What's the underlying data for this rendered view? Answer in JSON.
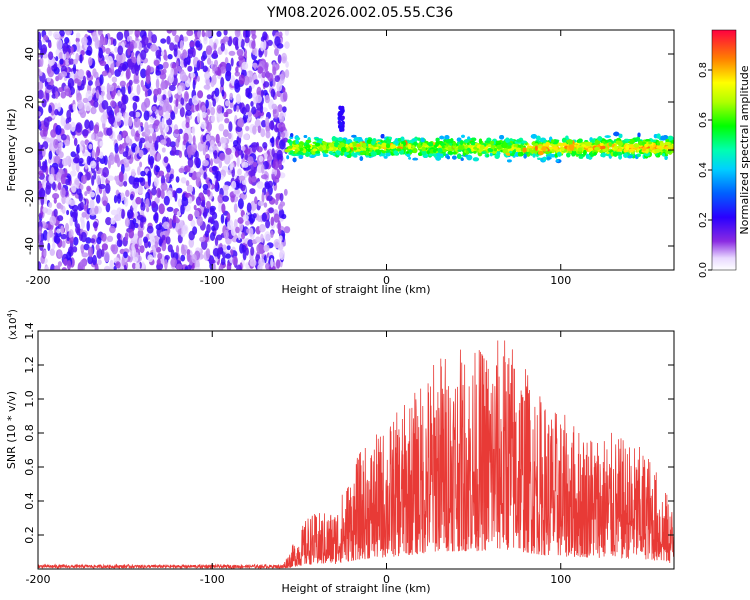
{
  "title": "YM08.2026.002.05.55.C36",
  "chart_data": [
    {
      "type": "heatmap",
      "xlabel": "Height of straight line (km)",
      "ylabel": "Frequency (Hz)",
      "xlim": [
        -200,
        165
      ],
      "ylim": [
        -50,
        50
      ],
      "xticks": [
        -200,
        -100,
        0,
        100
      ],
      "yticks": [
        -40,
        -20,
        0,
        20,
        40
      ],
      "colorbar": {
        "label": "Normalized spectral amplitude",
        "range": [
          0.0,
          0.96
        ],
        "ticks": [
          "0.0",
          "0.2",
          "0.4",
          "0.6",
          "0.8"
        ]
      },
      "regions": [
        {
          "desc": "scattered noise",
          "x": [
            -200,
            -57
          ],
          "y": [
            -50,
            50
          ],
          "amplitude": 0.15
        },
        {
          "desc": "signal band",
          "x": [
            -57,
            165
          ],
          "y_center": 1,
          "y_halfwidth": 5,
          "amplitude_max": 0.9
        },
        {
          "desc": "spike",
          "x": -26,
          "y": [
            8,
            18
          ],
          "amplitude": 0.2
        }
      ]
    },
    {
      "type": "line",
      "xlabel": "Height of straight line (km)",
      "ylabel": "SNR (10 * v/v)",
      "scale_label": "(x10",
      "scale_exp": "4",
      "xlim": [
        -200,
        165
      ],
      "ylim": [
        0,
        1.4
      ],
      "xticks": [
        -200,
        -100,
        0,
        100
      ],
      "yticks": [
        "0.2",
        "0.4",
        "0.6",
        "0.8",
        "1.0",
        "1.2",
        "1.4"
      ],
      "color": "#e83a36",
      "envelope": [
        [
          -200,
          0.02
        ],
        [
          -60,
          0.02
        ],
        [
          -45,
          0.32
        ],
        [
          -30,
          0.35
        ],
        [
          -15,
          0.7
        ],
        [
          0,
          0.85
        ],
        [
          20,
          1.1
        ],
        [
          30,
          1.3
        ],
        [
          50,
          1.3
        ],
        [
          70,
          1.4
        ],
        [
          90,
          1.0
        ],
        [
          110,
          0.85
        ],
        [
          130,
          0.8
        ],
        [
          150,
          0.7
        ],
        [
          165,
          0.35
        ]
      ]
    }
  ]
}
